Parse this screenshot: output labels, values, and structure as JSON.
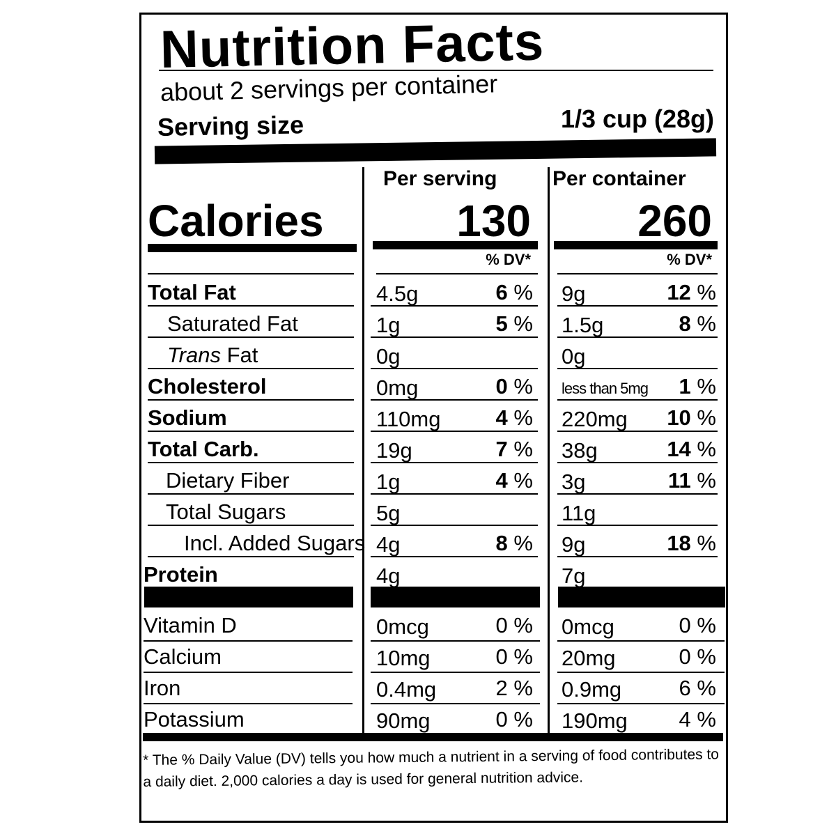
{
  "label": {
    "title": "Nutrition Facts",
    "servings_per_container": "about 2 servings per container",
    "serving_size_label": "Serving size",
    "serving_size_value": "1/3 cup (28g)",
    "col_per_serving": "Per serving",
    "col_per_container": "Per container",
    "calories_label": "Calories",
    "calories_per_serving": "130",
    "calories_per_container": "260",
    "dv_header": "% DV*",
    "nutrients": [
      {
        "name": "Total Fat",
        "serving_amt": "4.5g",
        "serving_dv": "6",
        "container_amt": "9g",
        "container_dv": "12"
      },
      {
        "name": "Saturated Fat",
        "serving_amt": "1g",
        "serving_dv": "5",
        "container_amt": "1.5g",
        "container_dv": "8"
      },
      {
        "name_prefix": "Trans",
        "name": "Fat",
        "serving_amt": "0g",
        "serving_dv": "",
        "container_amt": "0g",
        "container_dv": ""
      },
      {
        "name": "Cholesterol",
        "serving_amt": "0mg",
        "serving_dv": "0",
        "container_amt": "less than 5mg",
        "container_dv": "1"
      },
      {
        "name": "Sodium",
        "serving_amt": "110mg",
        "serving_dv": "4",
        "container_amt": "220mg",
        "container_dv": "10"
      },
      {
        "name": "Total Carb.",
        "serving_amt": "19g",
        "serving_dv": "7",
        "container_amt": "38g",
        "container_dv": "14"
      },
      {
        "name": "Dietary Fiber",
        "serving_amt": "1g",
        "serving_dv": "4",
        "container_amt": "3g",
        "container_dv": "11"
      },
      {
        "name": "Total Sugars",
        "serving_amt": "5g",
        "serving_dv": "",
        "container_amt": "11g",
        "container_dv": ""
      },
      {
        "name": "Incl. Added Sugars",
        "serving_amt": "4g",
        "serving_dv": "8",
        "container_amt": "9g",
        "container_dv": "18"
      },
      {
        "name": "Protein",
        "serving_amt": "4g",
        "serving_dv": "",
        "container_amt": "7g",
        "container_dv": ""
      }
    ],
    "vitamins": [
      {
        "name": "Vitamin D",
        "serving_amt": "0mcg",
        "serving_dv": "0",
        "container_amt": "0mcg",
        "container_dv": "0"
      },
      {
        "name": "Calcium",
        "serving_amt": "10mg",
        "serving_dv": "0",
        "container_amt": "20mg",
        "container_dv": "0"
      },
      {
        "name": "Iron",
        "serving_amt": "0.4mg",
        "serving_dv": "2",
        "container_amt": "0.9mg",
        "container_dv": "6"
      },
      {
        "name": "Potassium",
        "serving_amt": "90mg",
        "serving_dv": "0",
        "container_amt": "190mg",
        "container_dv": "4"
      }
    ],
    "pct_sign": "%",
    "footnote": "* The % Daily Value (DV) tells you how much a nutrient in a serving of food contributes to a daily diet. 2,000 calories a day is used for general nutrition advice."
  }
}
